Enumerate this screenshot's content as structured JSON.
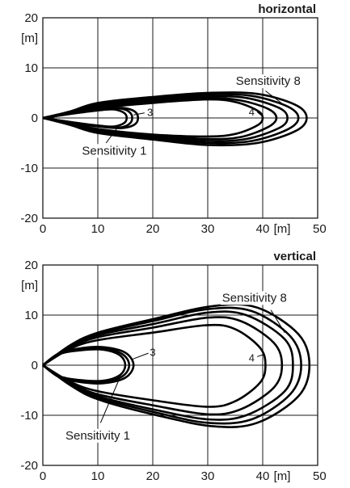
{
  "chart_data": [
    {
      "type": "line",
      "title": "horizontal",
      "xunit": "[m]",
      "yunit": "[m]",
      "xlim": [
        0,
        50
      ],
      "ylim": [
        -20,
        20
      ],
      "xticks": [
        0,
        10,
        20,
        30,
        40,
        50
      ],
      "yticks": [
        20,
        10,
        0,
        -10,
        -20
      ],
      "grid": true,
      "series": [
        {
          "x": [
            0,
            5,
            10,
            13,
            15,
            15,
            13,
            10,
            5,
            0
          ],
          "y": [
            0,
            0.8,
            1.5,
            1.7,
            0.8,
            -0.8,
            -1.7,
            -1.5,
            -0.8,
            0
          ]
        },
        {
          "x": [
            0,
            5,
            10,
            14,
            16,
            16,
            14,
            10,
            5,
            0
          ],
          "y": [
            0,
            0.8,
            1.6,
            1.9,
            0.9,
            -0.9,
            -1.9,
            -1.6,
            -0.8,
            0
          ]
        },
        {
          "x": [
            0,
            5,
            10,
            14.5,
            17,
            17,
            14.5,
            10,
            5,
            0
          ],
          "y": [
            0,
            0.9,
            1.7,
            2.0,
            1.0,
            -1.0,
            -2.0,
            -1.7,
            -0.9,
            0
          ]
        },
        {
          "x": [
            0,
            5,
            10,
            20,
            30,
            35,
            39,
            40,
            39,
            35,
            30,
            20,
            10,
            5,
            0
          ],
          "y": [
            0,
            1.0,
            2.0,
            3.0,
            3.7,
            3.2,
            1.5,
            0,
            -1.5,
            -3.2,
            -3.7,
            -3.3,
            -2.2,
            -1.0,
            0
          ]
        },
        {
          "x": [
            0,
            5,
            10,
            20,
            30,
            36,
            41,
            42.5,
            41,
            36,
            30,
            20,
            10,
            5,
            0
          ],
          "y": [
            0,
            1.0,
            2.3,
            3.3,
            4.0,
            3.5,
            1.8,
            0,
            -1.8,
            -3.8,
            -4.2,
            -3.5,
            -2.4,
            -1.1,
            0
          ]
        },
        {
          "x": [
            0,
            5,
            10,
            20,
            30,
            37,
            43,
            44.5,
            43,
            37,
            30,
            20,
            10,
            5,
            0
          ],
          "y": [
            0,
            1.1,
            2.5,
            3.6,
            4.3,
            4.0,
            2.0,
            0,
            -2.0,
            -4.2,
            -4.6,
            -3.8,
            -2.6,
            -1.2,
            0
          ]
        },
        {
          "x": [
            0,
            5,
            10,
            20,
            30,
            38,
            44.5,
            46.5,
            44.5,
            38,
            30,
            20,
            10,
            5,
            0
          ],
          "y": [
            0,
            1.2,
            2.7,
            3.9,
            4.7,
            4.4,
            2.3,
            0,
            -2.3,
            -4.6,
            -5.0,
            -4.0,
            -2.8,
            -1.3,
            0
          ]
        },
        {
          "x": [
            0,
            5,
            10,
            20,
            30,
            39,
            46,
            48,
            46,
            39,
            30,
            20,
            10,
            5,
            0
          ],
          "y": [
            0,
            1.3,
            3.0,
            4.2,
            5.0,
            4.8,
            2.6,
            0,
            -2.6,
            -5.0,
            -5.4,
            -4.3,
            -3.0,
            -1.4,
            0
          ]
        }
      ],
      "annotations": [
        {
          "text": "Sensitivity 8",
          "x": 41,
          "y": 7.4
        },
        {
          "text": "Sensitivity 1",
          "x": 13,
          "y": -6.5
        },
        {
          "text": "3",
          "x": 19.5,
          "y": 1.2
        },
        {
          "text": "4",
          "x": 38,
          "y": 1.3
        }
      ]
    },
    {
      "type": "line",
      "title": "vertical",
      "xunit": "[m]",
      "yunit": "[m]",
      "xlim": [
        0,
        50
      ],
      "ylim": [
        -20,
        20
      ],
      "xticks": [
        0,
        10,
        20,
        30,
        40,
        50
      ],
      "yticks": [
        20,
        10,
        0,
        -10,
        -20
      ],
      "grid": true,
      "series": [
        {
          "x": [
            0,
            3,
            7,
            11,
            14,
            15,
            14,
            11,
            7,
            3,
            0
          ],
          "y": [
            0,
            2.2,
            3.0,
            3.1,
            2.0,
            0,
            -2.0,
            -3.1,
            -3.0,
            -2.2,
            0
          ]
        },
        {
          "x": [
            0,
            3,
            7,
            11,
            14.5,
            15.7,
            14.5,
            11,
            7,
            3,
            0
          ],
          "y": [
            0,
            2.3,
            3.2,
            3.3,
            2.2,
            0,
            -2.2,
            -3.3,
            -3.2,
            -2.3,
            0
          ]
        },
        {
          "x": [
            0,
            3,
            7,
            11,
            15,
            16.5,
            15,
            11,
            7,
            3,
            0
          ],
          "y": [
            0,
            2.4,
            3.4,
            3.6,
            2.5,
            0,
            -2.5,
            -3.6,
            -3.4,
            -2.4,
            0
          ]
        },
        {
          "x": [
            0,
            5,
            10,
            20,
            30,
            35,
            39.5,
            40.5,
            39.5,
            35,
            30,
            20,
            10,
            5,
            0
          ],
          "y": [
            0,
            3.3,
            5.0,
            6.5,
            8.0,
            7.2,
            3.5,
            0,
            -3.5,
            -7.2,
            -8.3,
            -7.0,
            -5.2,
            -3.3,
            0
          ]
        },
        {
          "x": [
            0,
            5,
            10,
            20,
            30,
            36,
            42,
            43.5,
            42,
            36,
            30,
            20,
            10,
            5,
            0
          ],
          "y": [
            0,
            3.5,
            5.6,
            7.5,
            9.5,
            8.8,
            4.5,
            0,
            -4.5,
            -8.8,
            -9.8,
            -8.0,
            -5.8,
            -3.5,
            0
          ]
        },
        {
          "x": [
            0,
            5,
            10,
            20,
            30,
            37,
            44,
            45.5,
            44,
            37,
            30,
            20,
            10,
            5,
            0
          ],
          "y": [
            0,
            3.7,
            6.0,
            8.2,
            10.5,
            10.0,
            5.2,
            0,
            -5.2,
            -10.0,
            -10.8,
            -8.8,
            -6.2,
            -3.7,
            0
          ]
        },
        {
          "x": [
            0,
            5,
            10,
            20,
            30,
            38,
            45,
            47,
            45,
            38,
            30,
            20,
            10,
            5,
            0
          ],
          "y": [
            0,
            3.8,
            6.3,
            8.8,
            11.2,
            10.8,
            5.8,
            0,
            -5.8,
            -10.8,
            -11.5,
            -9.3,
            -6.5,
            -3.8,
            0
          ]
        },
        {
          "x": [
            0,
            5,
            10,
            20,
            31,
            39,
            46.5,
            48.5,
            46.5,
            39,
            31,
            20,
            10,
            5,
            0
          ],
          "y": [
            0,
            4.0,
            6.5,
            9.2,
            11.8,
            11.5,
            6.2,
            0,
            -6.2,
            -11.5,
            -12.2,
            -9.8,
            -6.8,
            -4.0,
            0
          ]
        }
      ],
      "annotations": [
        {
          "text": "Sensitivity 8",
          "x": 38.5,
          "y": 13.5
        },
        {
          "text": "Sensitivity 1",
          "x": 10,
          "y": -14
        },
        {
          "text": "3",
          "x": 20,
          "y": 2.7
        },
        {
          "text": "4",
          "x": 38,
          "y": 1.5
        }
      ]
    }
  ]
}
